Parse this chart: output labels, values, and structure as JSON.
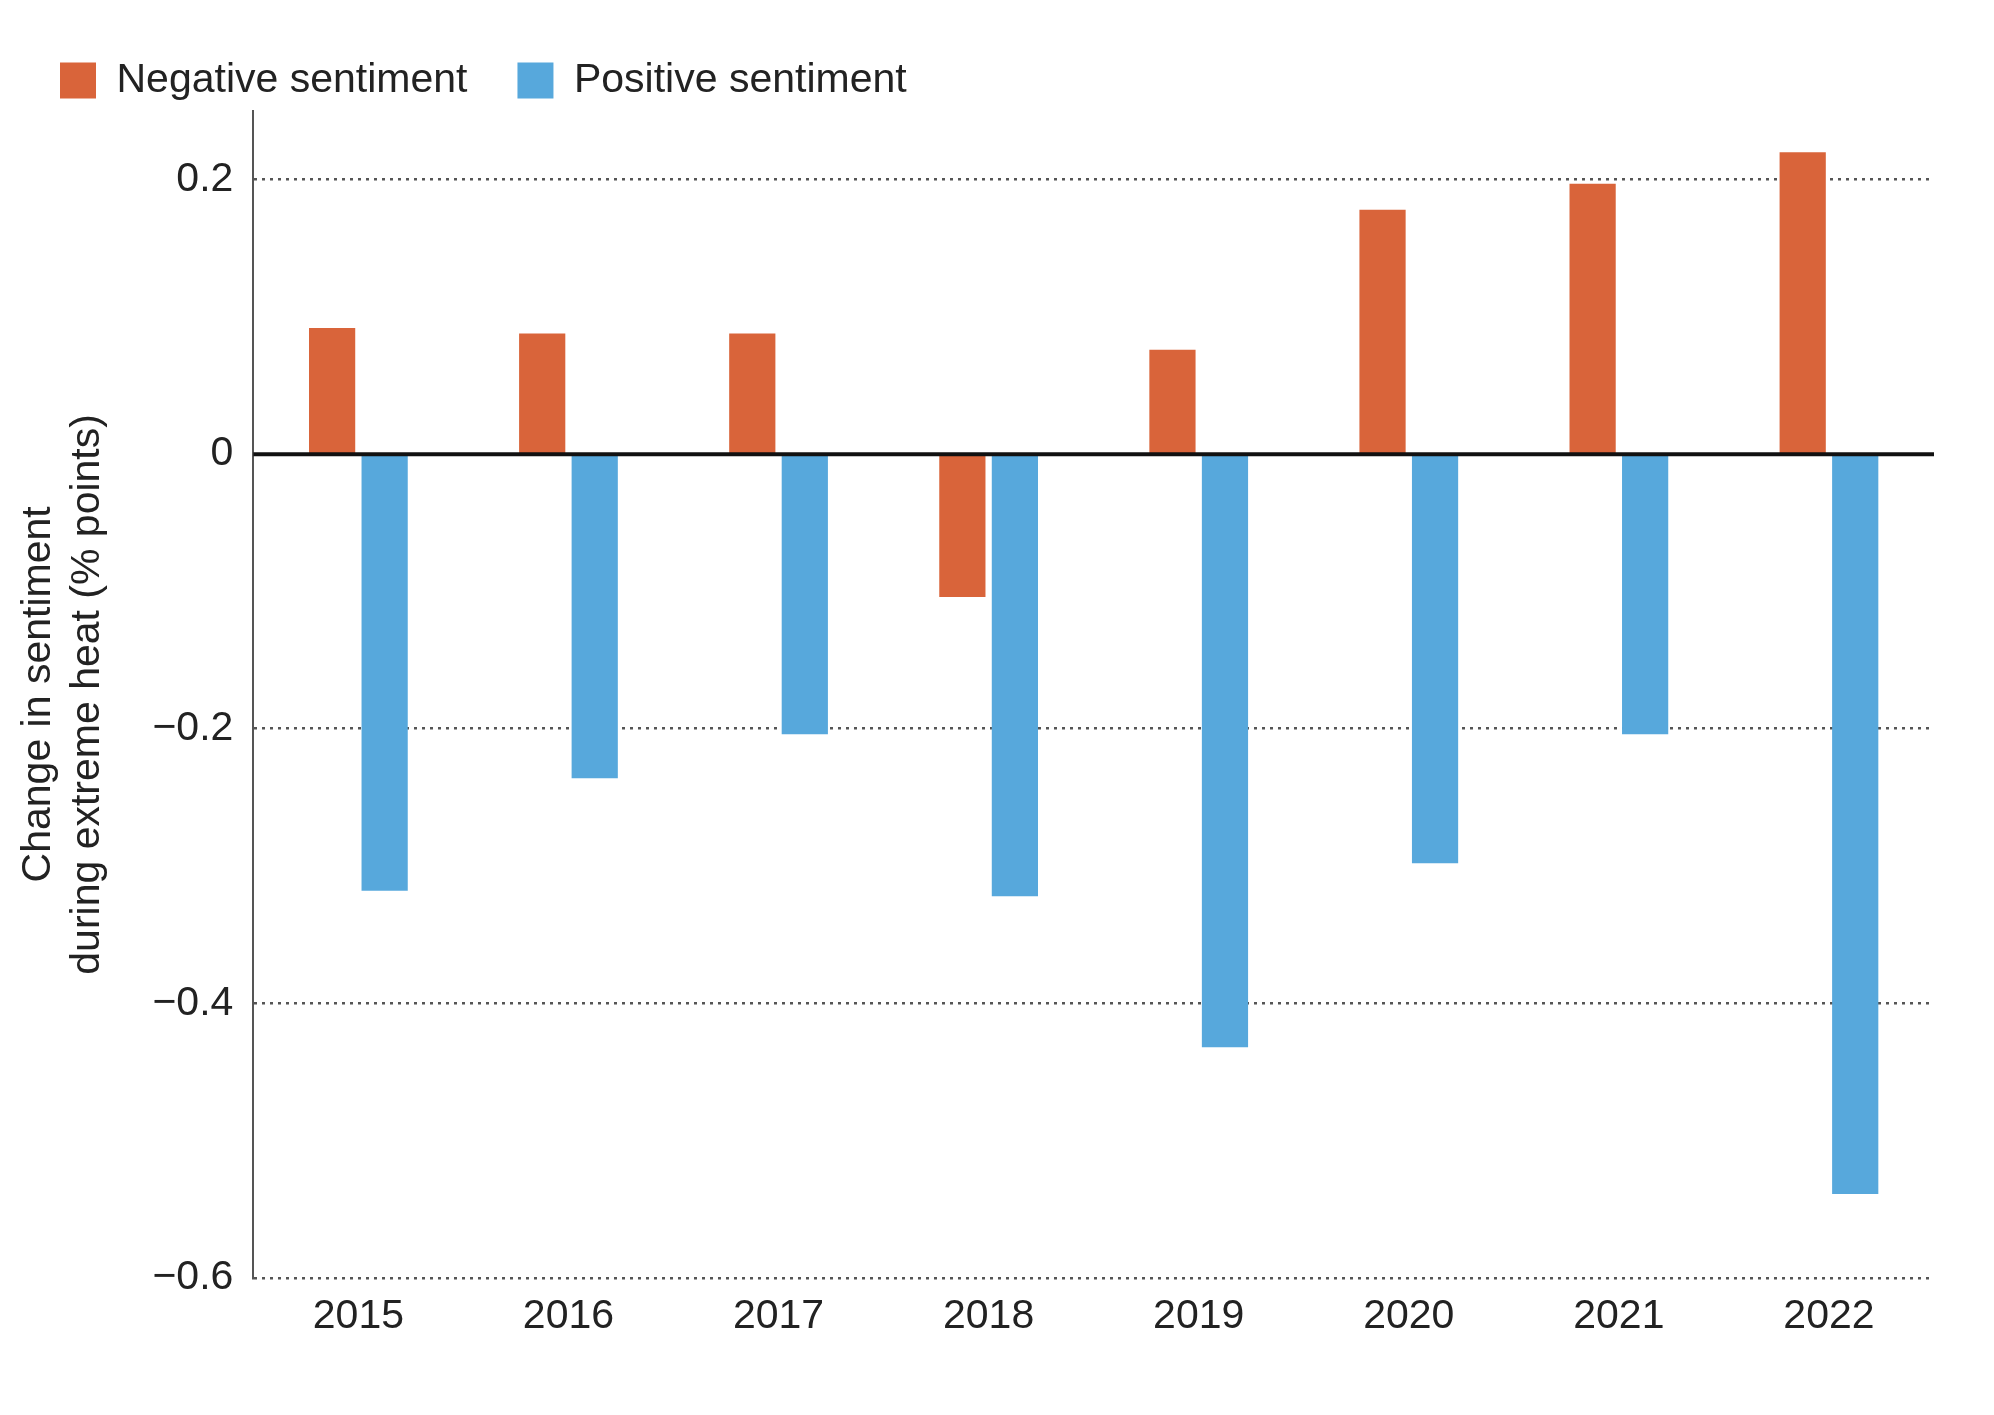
{
  "chart_data": {
    "type": "bar",
    "ylabel": "Change in sentiment\nduring extreme heat (% points)",
    "categories": [
      "2015",
      "2016",
      "2017",
      "2018",
      "2019",
      "2020",
      "2021",
      "2022"
    ],
    "series": [
      {
        "name": "Negative sentiment",
        "color": "#d9643a",
        "values": [
          0.092,
          0.088,
          0.088,
          -0.104,
          0.076,
          0.178,
          0.197,
          0.22
        ]
      },
      {
        "name": "Positive sentiment",
        "color": "#57a8dc",
        "values": [
          -0.318,
          -0.236,
          -0.204,
          -0.322,
          -0.432,
          -0.298,
          -0.204,
          -0.539
        ]
      }
    ],
    "ylim": [
      -0.6,
      0.25
    ],
    "yticks": [
      0.2,
      0,
      {
        "value": -0.2,
        "label": "−0.2"
      },
      {
        "value": -0.4,
        "label": "−0.4"
      },
      {
        "value": -0.6,
        "label": "−0.6"
      }
    ],
    "ref_lines": [
      {
        "axis": "y",
        "value": 0,
        "color": "#111111"
      }
    ],
    "grid": "y",
    "legend": "top left"
  }
}
